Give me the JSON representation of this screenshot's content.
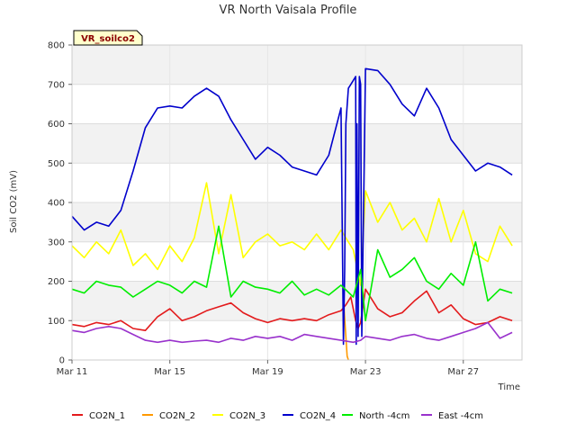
{
  "chart_data": {
    "type": "line",
    "title": "VR North Vaisala Profile",
    "xlabel": "Time",
    "ylabel": "Soil CO2 (mV)",
    "badge": "VR_soilco2",
    "x_range": [
      11.0,
      29.4
    ],
    "ylim": [
      0,
      800
    ],
    "y_ticks": [
      0,
      100,
      200,
      300,
      400,
      500,
      600,
      700,
      800
    ],
    "x_ticks": [
      {
        "value": 11,
        "label": "Mar 11"
      },
      {
        "value": 15,
        "label": "Mar 15"
      },
      {
        "value": 19,
        "label": "Mar 19"
      },
      {
        "value": 23,
        "label": "Mar 23"
      },
      {
        "value": 27,
        "label": "Mar 27"
      }
    ],
    "grid": true,
    "legend_position": "bottom",
    "series": [
      {
        "name": "CO2N_1",
        "color": "#e31a1c",
        "x": [
          11.0,
          11.5,
          12.0,
          12.5,
          13.0,
          13.5,
          14.0,
          14.5,
          15.0,
          15.5,
          16.0,
          16.5,
          17.0,
          17.5,
          18.0,
          18.5,
          19.0,
          19.5,
          20.0,
          20.5,
          21.0,
          21.5,
          22.0,
          22.2,
          22.4,
          22.6,
          22.7,
          22.8,
          23.0,
          23.5,
          24.0,
          24.5,
          25.0,
          25.5,
          26.0,
          26.5,
          27.0,
          27.5,
          28.0,
          28.5,
          29.0
        ],
        "y": [
          90,
          85,
          95,
          90,
          100,
          80,
          75,
          110,
          130,
          100,
          110,
          125,
          135,
          145,
          120,
          105,
          95,
          105,
          100,
          105,
          100,
          115,
          125,
          140,
          160,
          100,
          80,
          95,
          180,
          130,
          110,
          120,
          150,
          175,
          120,
          140,
          105,
          90,
          95,
          110,
          100
        ]
      },
      {
        "name": "CO2N_2",
        "color": "#ff9900",
        "x": [
          22.1,
          22.2,
          22.25,
          22.3
        ],
        "y": [
          155,
          60,
          10,
          0
        ]
      },
      {
        "name": "CO2N_3",
        "color": "#ffff00",
        "x": [
          11.0,
          11.5,
          12.0,
          12.5,
          13.0,
          13.5,
          14.0,
          14.5,
          15.0,
          15.5,
          16.0,
          16.5,
          17.0,
          17.5,
          18.0,
          18.5,
          19.0,
          19.5,
          20.0,
          20.5,
          21.0,
          21.5,
          22.0,
          22.5,
          22.8,
          23.0,
          23.5,
          24.0,
          24.5,
          25.0,
          25.5,
          26.0,
          26.5,
          27.0,
          27.5,
          28.0,
          28.5,
          29.0
        ],
        "y": [
          290,
          260,
          300,
          270,
          330,
          240,
          270,
          230,
          290,
          250,
          310,
          450,
          270,
          420,
          260,
          300,
          320,
          290,
          300,
          280,
          320,
          280,
          330,
          280,
          190,
          430,
          350,
          400,
          330,
          360,
          300,
          410,
          300,
          380,
          270,
          250,
          340,
          290
        ]
      },
      {
        "name": "CO2N_4",
        "color": "#0000cc",
        "x": [
          11.0,
          11.5,
          12.0,
          12.5,
          13.0,
          13.5,
          14.0,
          14.5,
          15.0,
          15.5,
          16.0,
          16.5,
          17.0,
          17.5,
          18.0,
          18.5,
          19.0,
          19.5,
          20.0,
          20.5,
          21.0,
          21.5,
          22.0,
          22.1,
          22.15,
          22.2,
          22.3,
          22.4,
          22.5,
          22.6,
          22.62,
          22.65,
          22.7,
          22.75,
          22.8,
          22.85,
          23.0,
          23.5,
          24.0,
          24.5,
          25.0,
          25.5,
          26.0,
          26.5,
          27.0,
          27.5,
          28.0,
          28.5,
          29.0
        ],
        "y": [
          365,
          330,
          350,
          340,
          380,
          480,
          590,
          640,
          645,
          640,
          670,
          690,
          670,
          610,
          560,
          510,
          540,
          520,
          490,
          480,
          470,
          520,
          640,
          40,
          230,
          600,
          690,
          700,
          710,
          720,
          40,
          600,
          60,
          720,
          700,
          60,
          740,
          735,
          700,
          650,
          620,
          690,
          640,
          560,
          520,
          480,
          500,
          490,
          470
        ]
      },
      {
        "name": "North -4cm",
        "color": "#00ee00",
        "x": [
          11.0,
          11.5,
          12.0,
          12.5,
          13.0,
          13.5,
          14.0,
          14.5,
          15.0,
          15.5,
          16.0,
          16.5,
          17.0,
          17.5,
          18.0,
          18.5,
          19.0,
          19.5,
          20.0,
          20.5,
          21.0,
          21.5,
          22.0,
          22.5,
          22.8,
          23.0,
          23.5,
          24.0,
          24.5,
          25.0,
          25.5,
          26.0,
          26.5,
          27.0,
          27.5,
          28.0,
          28.5,
          29.0
        ],
        "y": [
          180,
          170,
          200,
          190,
          185,
          160,
          180,
          200,
          190,
          170,
          200,
          185,
          340,
          160,
          200,
          185,
          180,
          170,
          200,
          165,
          180,
          165,
          190,
          160,
          230,
          100,
          280,
          210,
          230,
          260,
          200,
          180,
          220,
          190,
          300,
          150,
          180,
          170
        ]
      },
      {
        "name": "East -4cm",
        "color": "#9932cc",
        "x": [
          11.0,
          11.5,
          12.0,
          12.5,
          13.0,
          13.5,
          14.0,
          14.5,
          15.0,
          15.5,
          16.0,
          16.5,
          17.0,
          17.5,
          18.0,
          18.5,
          19.0,
          19.5,
          20.0,
          20.5,
          21.0,
          21.5,
          22.0,
          22.5,
          22.8,
          23.0,
          23.5,
          24.0,
          24.5,
          25.0,
          25.5,
          26.0,
          26.5,
          27.0,
          27.5,
          28.0,
          28.5,
          29.0
        ],
        "y": [
          75,
          70,
          80,
          85,
          80,
          65,
          50,
          45,
          50,
          45,
          48,
          50,
          45,
          55,
          50,
          60,
          55,
          60,
          50,
          65,
          60,
          55,
          50,
          45,
          50,
          60,
          55,
          50,
          60,
          65,
          55,
          50,
          60,
          70,
          80,
          95,
          55,
          70
        ]
      }
    ]
  }
}
